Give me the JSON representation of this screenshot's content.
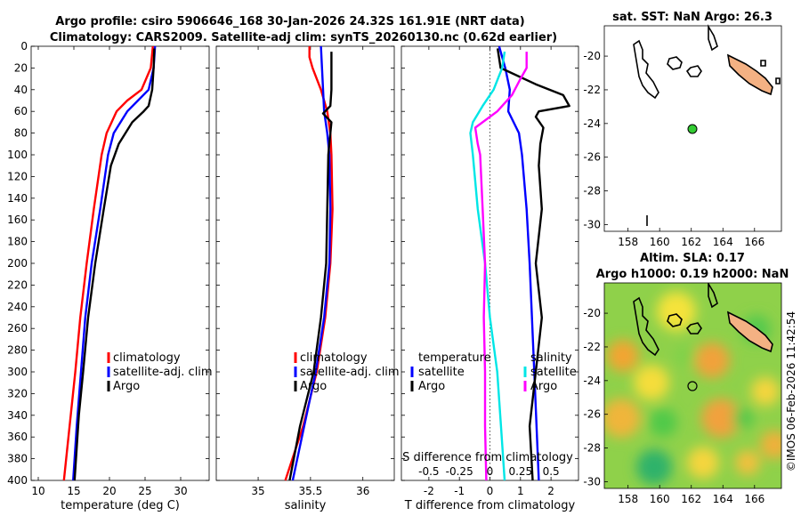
{
  "header": {
    "title_line1": "Argo profile: csiro 5906646_168 30-Jan-2026 24.32S 161.91E (NRT data)",
    "title_line2": "Climatology: CARS2009. Satellite-adj clim: synTS_20260130.nc (0.62d earlier)"
  },
  "colors": {
    "clim": "#ff0000",
    "sat": "#0000ff",
    "argo": "#000000",
    "magenta": "#ff00ff",
    "cyan": "#00e6e6",
    "land": "#f4b183",
    "dot": "#33cc33"
  },
  "depth_axis": {
    "ylim": [
      0,
      400
    ],
    "ticks": [
      0,
      20,
      40,
      60,
      80,
      100,
      120,
      140,
      160,
      180,
      200,
      220,
      240,
      260,
      280,
      300,
      320,
      340,
      360,
      380,
      400
    ],
    "tick_labels": [
      "0",
      "20",
      "40",
      "60",
      "80",
      "100",
      "120",
      "140",
      "160",
      "180",
      "200",
      "220",
      "240",
      "260",
      "280",
      "300",
      "320",
      "340",
      "360",
      "380",
      "400"
    ]
  },
  "chart_data": [
    {
      "type": "line",
      "xlabel": "temperature (deg C)",
      "xlim": [
        9,
        34
      ],
      "xticks": [
        10,
        15,
        20,
        25,
        30
      ],
      "xtick_labels": [
        "10",
        "15",
        "20",
        "25",
        "30"
      ],
      "legend": [
        "climatology",
        "satellite-adj. clim",
        "Argo"
      ],
      "series": [
        {
          "name": "climatology",
          "color": "#ff0000",
          "depth": [
            0,
            20,
            40,
            50,
            60,
            80,
            100,
            150,
            200,
            250,
            300,
            350,
            400
          ],
          "values": [
            26.1,
            25.8,
            24.5,
            22.5,
            21,
            19.6,
            18.9,
            17.8,
            16.8,
            15.9,
            15.2,
            14.4,
            13.6
          ]
        },
        {
          "name": "satellite-adj. clim",
          "color": "#0000ff",
          "depth": [
            0,
            20,
            40,
            50,
            60,
            80,
            100,
            150,
            200,
            250,
            300,
            350,
            400
          ],
          "values": [
            26.4,
            26.2,
            25.5,
            24,
            22.5,
            20.6,
            19.8,
            18.7,
            17.5,
            16.6,
            16,
            15.4,
            14.9
          ]
        },
        {
          "name": "Argo",
          "color": "#000000",
          "depth": [
            2,
            20,
            40,
            55,
            60,
            70,
            90,
            110,
            150,
            200,
            250,
            300,
            340,
            360,
            400
          ],
          "values": [
            26.3,
            26.2,
            26,
            25.5,
            24.8,
            23.2,
            21.3,
            20.2,
            19.2,
            18,
            17,
            16.3,
            15.7,
            15.5,
            15.1
          ]
        }
      ]
    },
    {
      "type": "line",
      "xlabel": "salinity",
      "xlim": [
        34.6,
        36.3
      ],
      "xticks": [
        35,
        35.5,
        36
      ],
      "xtick_labels": [
        "35",
        "35.5",
        "36"
      ],
      "legend": [
        "climatology",
        "satellite-adj. clim",
        "Argo"
      ],
      "series": [
        {
          "name": "climatology",
          "color": "#ff0000",
          "depth": [
            0,
            10,
            20,
            40,
            60,
            80,
            100,
            150,
            200,
            250,
            300,
            350,
            400
          ],
          "values": [
            35.49,
            35.49,
            35.52,
            35.6,
            35.66,
            35.69,
            35.7,
            35.71,
            35.69,
            35.64,
            35.56,
            35.43,
            35.26
          ]
        },
        {
          "name": "satellite-adj. clim",
          "color": "#0000ff",
          "depth": [
            0,
            20,
            40,
            60,
            80,
            100,
            150,
            200,
            250,
            300,
            350,
            400
          ],
          "values": [
            35.6,
            35.61,
            35.62,
            35.63,
            35.66,
            35.68,
            35.69,
            35.68,
            35.63,
            35.55,
            35.44,
            35.33
          ]
        },
        {
          "name": "Argo",
          "color": "#000000",
          "depth": [
            5,
            40,
            55,
            62,
            70,
            80,
            100,
            150,
            200,
            250,
            300,
            350,
            400
          ],
          "values": [
            35.7,
            35.7,
            35.69,
            35.62,
            35.7,
            35.69,
            35.67,
            35.66,
            35.65,
            35.6,
            35.53,
            35.4,
            35.3
          ]
        }
      ]
    },
    {
      "type": "line",
      "xlabel": "T difference from climatology",
      "xlim": [
        -2.9,
        2.9
      ],
      "xticks": [
        -2,
        -1,
        0,
        1,
        2
      ],
      "xtick_labels": [
        "-2",
        "-1",
        "0",
        "1",
        "2"
      ],
      "top_label": "S difference from climatology",
      "top_ticks": [
        -0.5,
        -0.25,
        0,
        0.25,
        0.5
      ],
      "top_tick_labels": [
        "-0.5",
        "-0.25",
        "0",
        "0.25",
        "0.5"
      ],
      "legend_temperature_header": "temperature",
      "legend_salinity_header": "salinity",
      "legend_entries": [
        "satellite",
        "Argo"
      ],
      "series": [
        {
          "name": "temperature satellite",
          "color": "#0000ff",
          "depth": [
            0,
            20,
            40,
            60,
            80,
            100,
            150,
            200,
            300,
            400
          ],
          "values": [
            0.3,
            0.5,
            0.65,
            0.6,
            0.95,
            1.05,
            1.2,
            1.3,
            1.45,
            1.6
          ]
        },
        {
          "name": "temperature Argo",
          "color": "#000000",
          "depth": [
            2,
            20,
            35,
            45,
            55,
            60,
            65,
            75,
            90,
            110,
            150,
            200,
            250,
            300,
            350,
            400
          ],
          "values": [
            0.25,
            0.35,
            1.5,
            2.4,
            2.6,
            1.6,
            1.5,
            1.75,
            1.65,
            1.6,
            1.7,
            1.5,
            1.7,
            1.5,
            1.3,
            1.4
          ]
        },
        {
          "name": "salinity satellite",
          "color": "#00e6e6",
          "depth": [
            5,
            20,
            40,
            55,
            70,
            80,
            100,
            150,
            200,
            250,
            300,
            350,
            400
          ],
          "values": [
            0.12,
            0.1,
            0.03,
            -0.06,
            -0.14,
            -0.16,
            -0.14,
            -0.1,
            -0.04,
            0.0,
            0.06,
            0.09,
            0.12
          ]
        },
        {
          "name": "salinity Argo",
          "color": "#ff00ff",
          "depth": [
            5,
            20,
            30,
            45,
            60,
            75,
            90,
            100,
            150,
            200,
            250,
            300,
            350,
            400
          ],
          "values": [
            0.3,
            0.3,
            0.25,
            0.18,
            0.06,
            -0.12,
            -0.1,
            -0.08,
            -0.06,
            -0.04,
            -0.05,
            -0.04,
            -0.04,
            -0.03
          ]
        }
      ]
    }
  ],
  "map_sst": {
    "title": "sat. SST: NaN Argo: 26.3",
    "xticks": [
      "158",
      "160",
      "162",
      "164",
      "166"
    ],
    "yticks": [
      "-20",
      "-22",
      "-24",
      "-26",
      "-28",
      "-30"
    ]
  },
  "map_sla": {
    "title_line1": "Altim. SLA: 0.17",
    "title_line2": "Argo h1000: 0.19 h2000: NaN",
    "xticks": [
      "158",
      "160",
      "162",
      "164",
      "166"
    ],
    "yticks": [
      "-20",
      "-22",
      "-24",
      "-26",
      "-28",
      "-30"
    ]
  },
  "watermark": "©IMOS 06-Feb-2026 11:42:54"
}
